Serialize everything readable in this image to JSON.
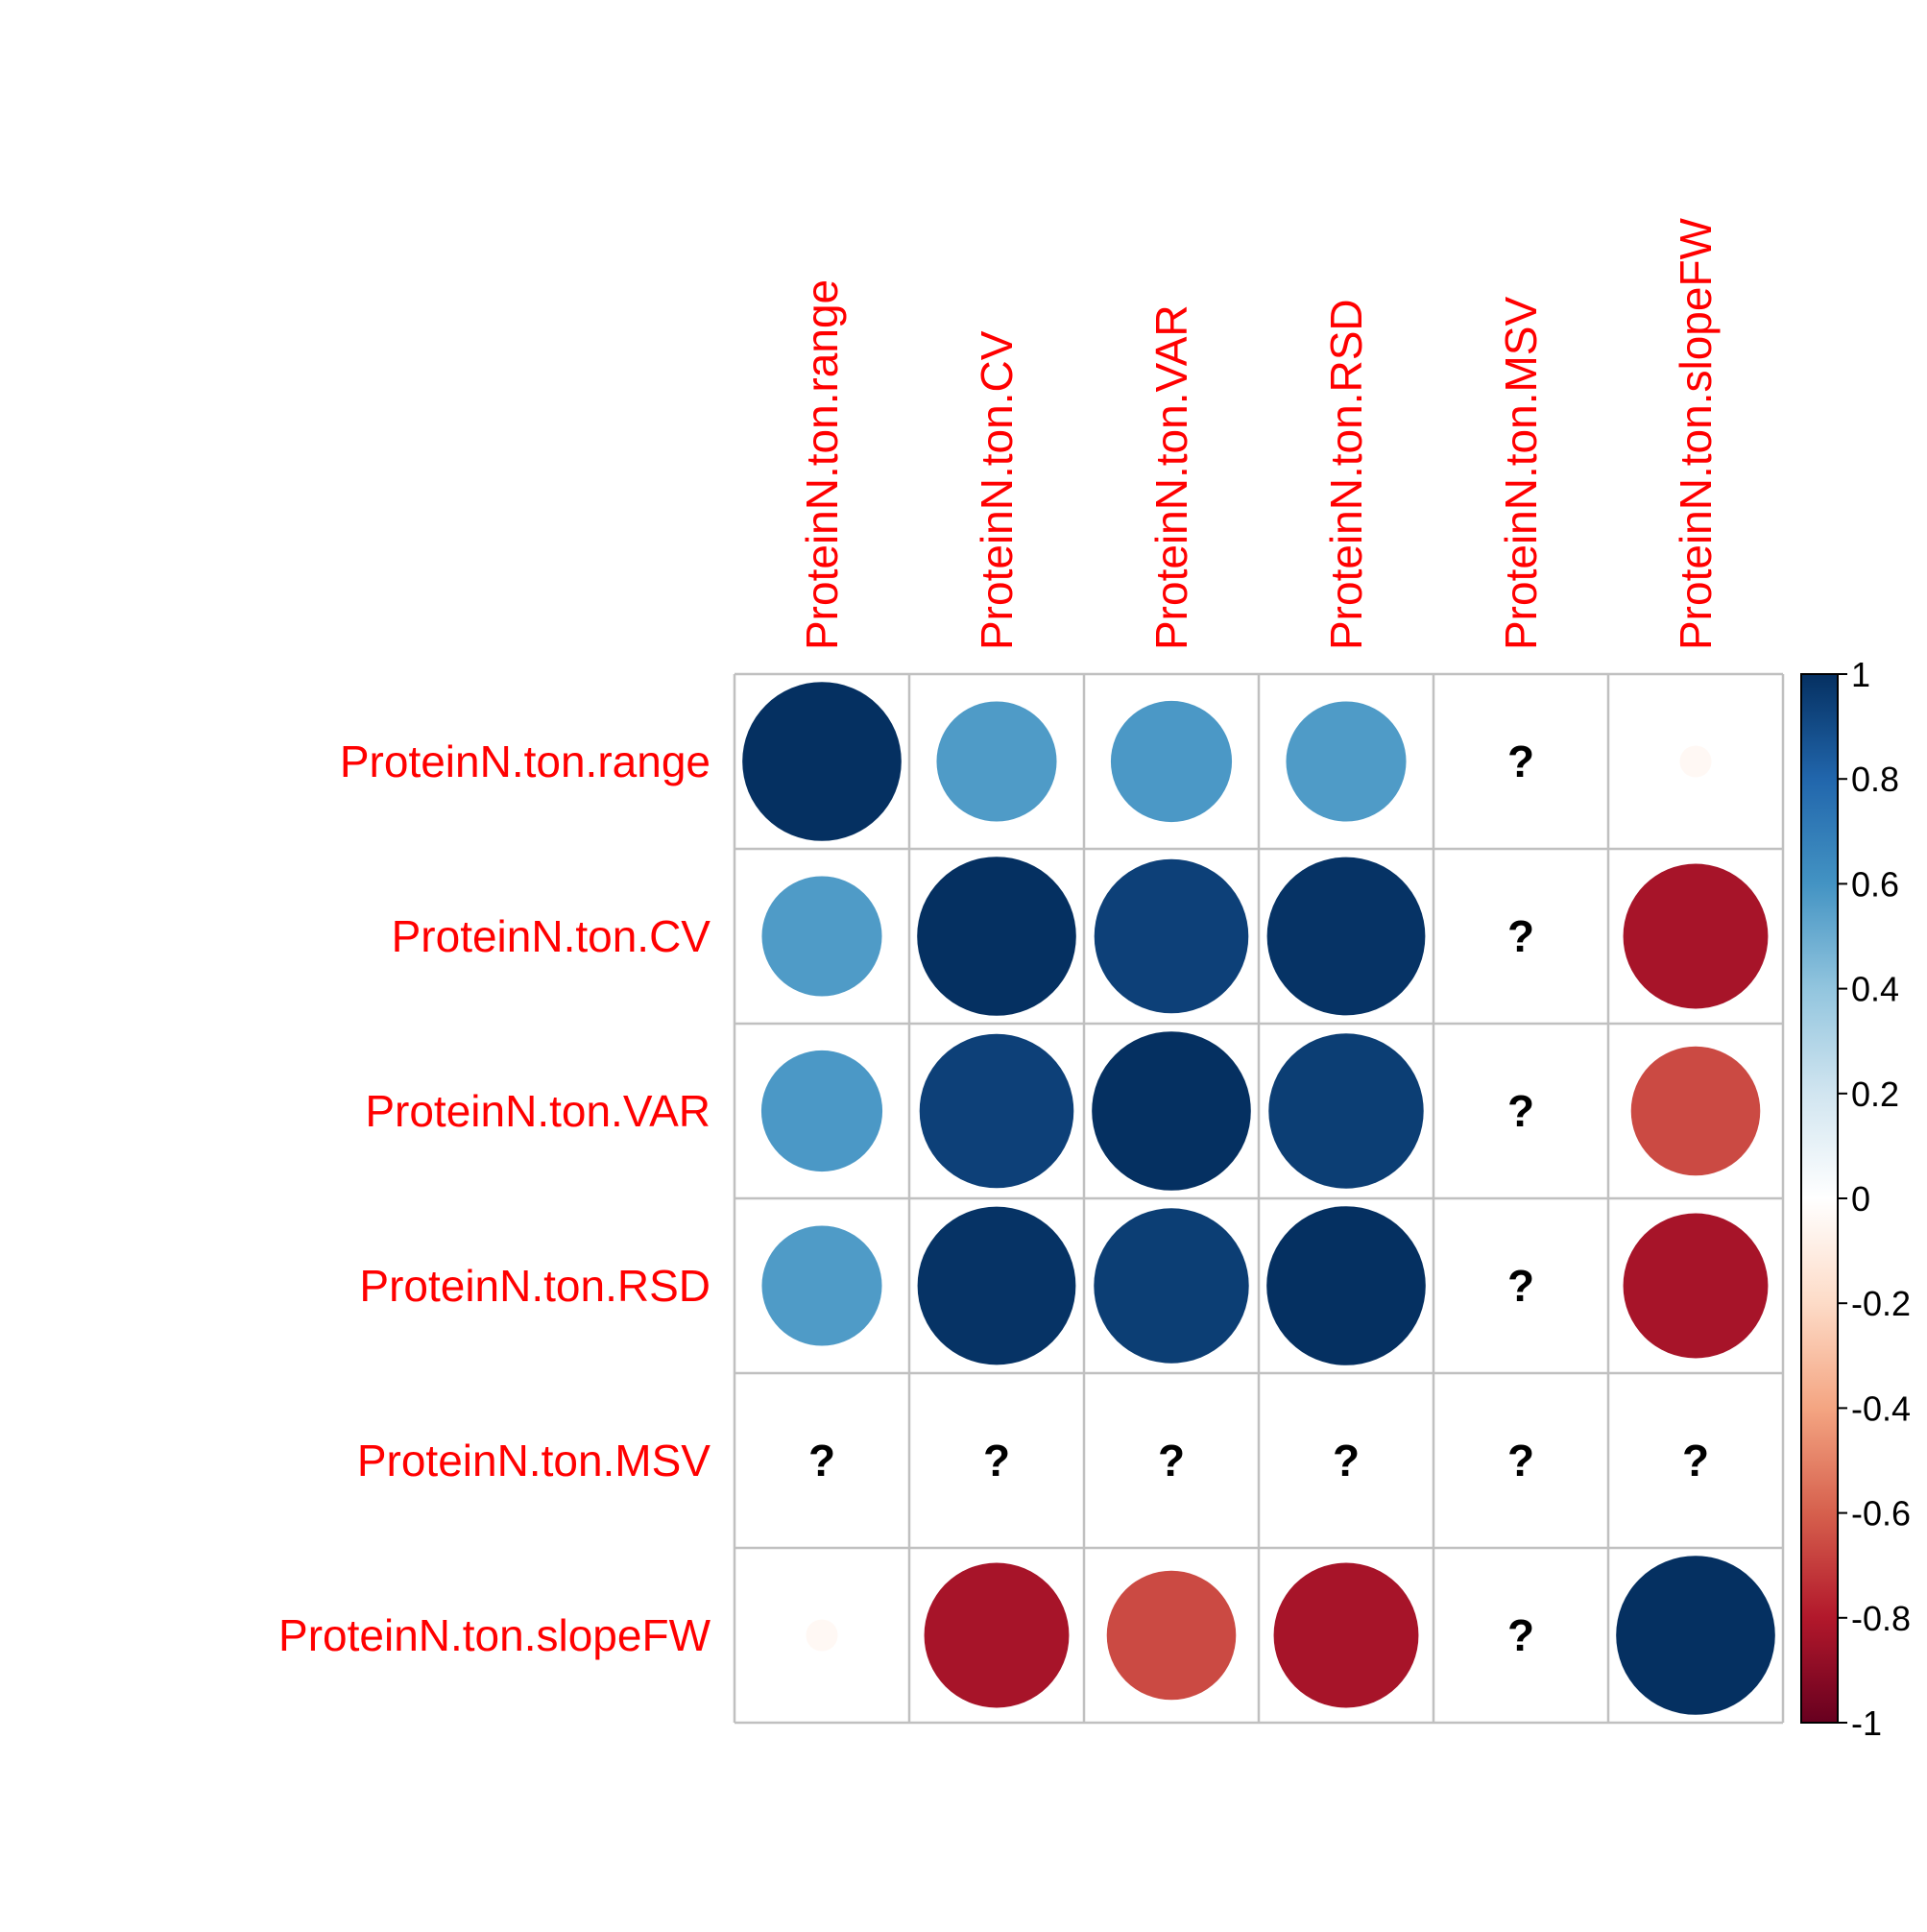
{
  "chart_data": {
    "type": "heatmap",
    "style": "corrplot circles",
    "variables": [
      "ProteinN.ton.range",
      "ProteinN.ton.CV",
      "ProteinN.ton.VAR",
      "ProteinN.ton.RSD",
      "ProteinN.ton.MSV",
      "ProteinN.ton.slopeFW"
    ],
    "matrix": [
      [
        1.0,
        0.57,
        0.58,
        0.57,
        null,
        -0.04
      ],
      [
        0.57,
        1.0,
        0.94,
        0.99,
        null,
        -0.83
      ],
      [
        0.58,
        0.94,
        1.0,
        0.95,
        null,
        -0.66
      ],
      [
        0.57,
        0.99,
        0.95,
        1.0,
        null,
        -0.83
      ],
      [
        null,
        null,
        null,
        null,
        null,
        null
      ],
      [
        -0.04,
        -0.83,
        -0.66,
        -0.83,
        null,
        1.0
      ]
    ],
    "missing_symbol": "?",
    "colorbar": {
      "ticks": [
        "1",
        "0.8",
        "0.6",
        "0.4",
        "0.2",
        "0",
        "-0.2",
        "-0.4",
        "-0.6",
        "-0.8",
        "-1"
      ],
      "range": [
        -1,
        1
      ],
      "colors": [
        "#67001F",
        "#B2182B",
        "#D6604D",
        "#F4A582",
        "#FDDBC7",
        "#FFFFFF",
        "#D1E5F0",
        "#92C5DE",
        "#4393C3",
        "#2166AC",
        "#053061"
      ]
    },
    "label_color": "#FF0000",
    "grid_color": "#C0C0C0",
    "title": "",
    "xlabel": "",
    "ylabel": ""
  }
}
